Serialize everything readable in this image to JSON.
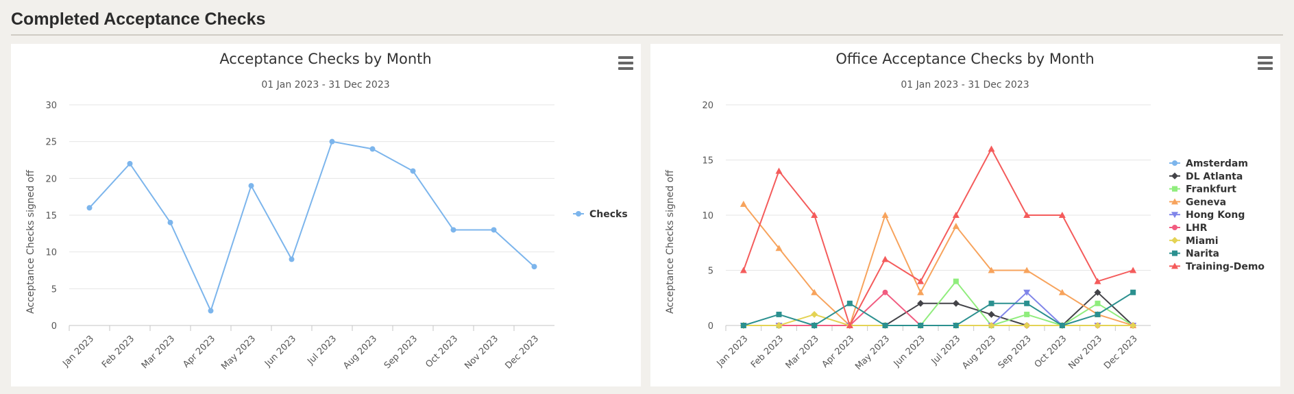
{
  "page": {
    "title": "Completed Acceptance Checks"
  },
  "chart_data": [
    {
      "type": "line",
      "title": "Acceptance Checks by Month",
      "subtitle": "01 Jan 2023 - 31 Dec 2023",
      "xlabel": "",
      "ylabel": "Acceptance Checks signed off",
      "ylim": [
        0,
        30
      ],
      "yticks": [
        0,
        5,
        10,
        15,
        20,
        25,
        30
      ],
      "grid": true,
      "legend": "right",
      "categories": [
        "Jan 2023",
        "Feb 2023",
        "Mar 2023",
        "Apr 2023",
        "May 2023",
        "Jun 2023",
        "Jul 2023",
        "Aug 2023",
        "Sep 2023",
        "Oct 2023",
        "Nov 2023",
        "Dec 2023"
      ],
      "series": [
        {
          "name": "Checks",
          "color": "#7cb5ec",
          "marker": "circle",
          "values": [
            16,
            22,
            14,
            2,
            19,
            9,
            25,
            24,
            21,
            13,
            13,
            8
          ]
        }
      ]
    },
    {
      "type": "line",
      "title": "Office Acceptance Checks by Month",
      "subtitle": "01 Jan 2023 - 31 Dec 2023",
      "xlabel": "",
      "ylabel": "Acceptance Checks signed off",
      "ylim": [
        0,
        20
      ],
      "yticks": [
        0,
        5,
        10,
        15,
        20
      ],
      "grid": true,
      "legend": "right",
      "categories": [
        "Jan 2023",
        "Feb 2023",
        "Mar 2023",
        "Apr 2023",
        "May 2023",
        "Jun 2023",
        "Jul 2023",
        "Aug 2023",
        "Sep 2023",
        "Oct 2023",
        "Nov 2023",
        "Dec 2023"
      ],
      "series": [
        {
          "name": "Amsterdam",
          "color": "#7cb5ec",
          "marker": "circle",
          "values": [
            0,
            0,
            0,
            0,
            0,
            0,
            0,
            0,
            0,
            0,
            0,
            0
          ]
        },
        {
          "name": "DL Atlanta",
          "color": "#434348",
          "marker": "diamond",
          "values": [
            0,
            0,
            0,
            0,
            0,
            2,
            2,
            1,
            0,
            0,
            3,
            0
          ]
        },
        {
          "name": "Frankfurt",
          "color": "#90ed7d",
          "marker": "square",
          "values": [
            0,
            0,
            0,
            0,
            0,
            0,
            4,
            0,
            1,
            0,
            2,
            0
          ]
        },
        {
          "name": "Geneva",
          "color": "#f7a35c",
          "marker": "triangle",
          "values": [
            11,
            7,
            3,
            0,
            10,
            3,
            9,
            5,
            5,
            3,
            1,
            0
          ]
        },
        {
          "name": "Hong Kong",
          "color": "#8085e9",
          "marker": "triangle-down",
          "values": [
            0,
            0,
            0,
            0,
            0,
            0,
            0,
            0,
            3,
            0,
            0,
            0
          ]
        },
        {
          "name": "LHR",
          "color": "#f15c80",
          "marker": "circle",
          "values": [
            0,
            0,
            0,
            0,
            3,
            0,
            0,
            0,
            0,
            0,
            0,
            0
          ]
        },
        {
          "name": "Miami",
          "color": "#e4d354",
          "marker": "diamond",
          "values": [
            0,
            0,
            1,
            0,
            0,
            0,
            0,
            0,
            0,
            0,
            0,
            0
          ]
        },
        {
          "name": "Narita",
          "color": "#2b908f",
          "marker": "square",
          "values": [
            0,
            1,
            0,
            2,
            0,
            0,
            0,
            2,
            2,
            0,
            1,
            3
          ]
        },
        {
          "name": "Training-Demo",
          "color": "#f45b5b",
          "marker": "triangle",
          "values": [
            5,
            14,
            10,
            0,
            6,
            4,
            10,
            16,
            10,
            10,
            4,
            5
          ]
        }
      ]
    }
  ]
}
